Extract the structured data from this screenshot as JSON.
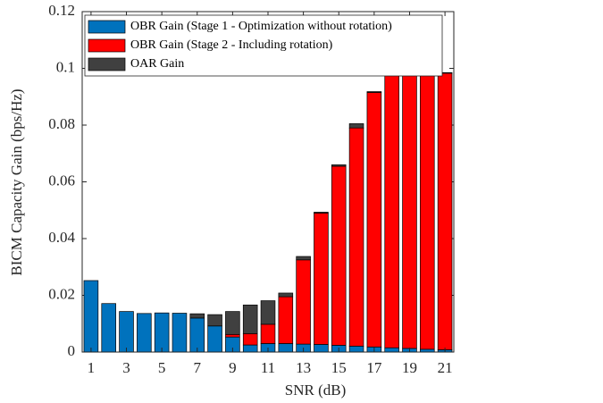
{
  "chart_data": {
    "type": "stacked-bar",
    "x_label": "SNR (dB)",
    "y_label": "BICM Capacity Gain (bps/Hz)",
    "categories": [
      "1",
      null,
      "3",
      null,
      "5",
      null,
      "7",
      null,
      "9",
      null,
      "11",
      null,
      "13",
      null,
      "15",
      null,
      "17",
      null,
      "19",
      null,
      "21"
    ],
    "series": [
      {
        "name": "OBR Gain (Stage 1 - Optimization without rotation)",
        "color": "#0072bd",
        "values": [
          0.0252,
          0.0171,
          0.0143,
          0.0136,
          0.0138,
          0.0137,
          0.012,
          0.0092,
          0.0053,
          0.0025,
          0.003,
          0.003,
          0.0028,
          0.0027,
          0.0024,
          0.0021,
          0.0018,
          0.0015,
          0.0013,
          0.001,
          0.0008
        ]
      },
      {
        "name": "OBR Gain (Stage 2 - Including rotation)",
        "color": "#ff0000",
        "values": [
          0,
          0,
          0,
          0,
          0,
          0,
          0,
          0,
          0.0009,
          0.004,
          0.0068,
          0.0165,
          0.0297,
          0.0463,
          0.0631,
          0.0769,
          0.0897,
          0.098,
          0.1019,
          0.1017,
          0.0975
        ]
      },
      {
        "name": "OAR Gain",
        "color": "#404040",
        "values": [
          0,
          0,
          0,
          0,
          0,
          0,
          0.0015,
          0.004,
          0.0081,
          0.0101,
          0.0083,
          0.0013,
          0.0012,
          0.0003,
          0.0005,
          0.0015,
          0.0003,
          0.0005,
          0.0003,
          0.0003,
          0.0002
        ]
      }
    ],
    "ylim": [
      0,
      0.12
    ],
    "yticks": [
      0,
      0.02,
      0.04,
      0.06,
      0.08,
      0.1,
      0.12
    ],
    "legend": "upper-left"
  }
}
